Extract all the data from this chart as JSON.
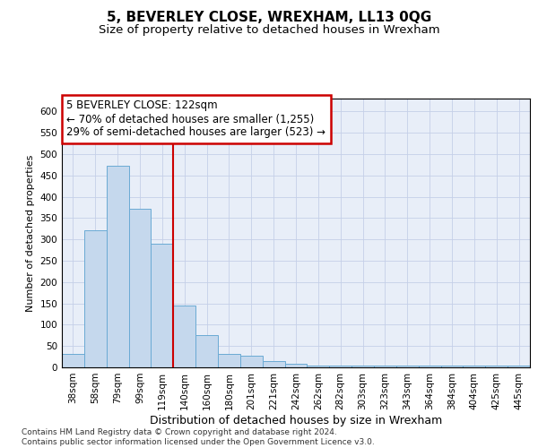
{
  "title": "5, BEVERLEY CLOSE, WREXHAM, LL13 0QG",
  "subtitle": "Size of property relative to detached houses in Wrexham",
  "xlabel": "Distribution of detached houses by size in Wrexham",
  "ylabel": "Number of detached properties",
  "categories": [
    "38sqm",
    "58sqm",
    "79sqm",
    "99sqm",
    "119sqm",
    "140sqm",
    "160sqm",
    "180sqm",
    "201sqm",
    "221sqm",
    "242sqm",
    "262sqm",
    "282sqm",
    "303sqm",
    "323sqm",
    "343sqm",
    "364sqm",
    "384sqm",
    "404sqm",
    "425sqm",
    "445sqm"
  ],
  "values": [
    31,
    322,
    472,
    372,
    290,
    144,
    75,
    31,
    28,
    15,
    8,
    5,
    5,
    5,
    4,
    4,
    4,
    4,
    4,
    4,
    5
  ],
  "bar_color": "#c5d8ed",
  "bar_edge_color": "#6aaad4",
  "annotation_line1": "5 BEVERLEY CLOSE: 122sqm",
  "annotation_line2": "← 70% of detached houses are smaller (1,255)",
  "annotation_line3": "29% of semi-detached houses are larger (523) →",
  "annotation_box_color": "#ffffff",
  "annotation_box_edge_color": "#cc0000",
  "property_line_color": "#cc0000",
  "property_line_x": 4.5,
  "ylim": [
    0,
    630
  ],
  "yticks": [
    0,
    50,
    100,
    150,
    200,
    250,
    300,
    350,
    400,
    450,
    500,
    550,
    600
  ],
  "footer_text": "Contains HM Land Registry data © Crown copyright and database right 2024.\nContains public sector information licensed under the Open Government Licence v3.0.",
  "background_color": "#e8eef8",
  "grid_color": "#c5cfe8",
  "title_fontsize": 11,
  "subtitle_fontsize": 9.5,
  "xlabel_fontsize": 9,
  "ylabel_fontsize": 8,
  "tick_fontsize": 7.5,
  "annotation_fontsize": 8.5,
  "footer_fontsize": 6.5
}
